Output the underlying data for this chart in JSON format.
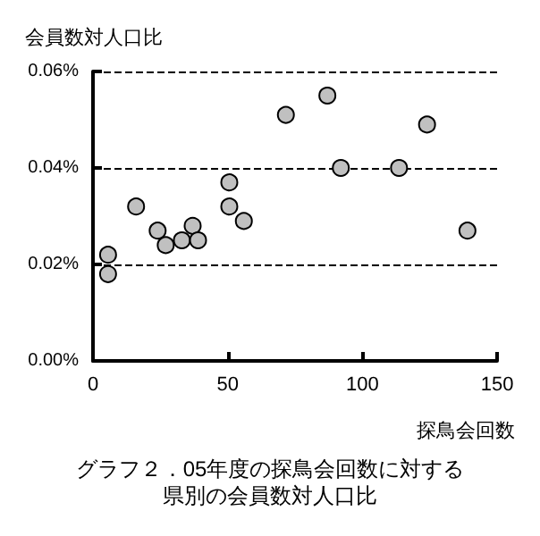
{
  "chart_data": {
    "type": "scatter",
    "title": "グラフ２．05年度の探鳥会回数に対する県別の会員数対人口比",
    "xlabel": "探鳥会回数",
    "ylabel": "会員数対人口比",
    "x": [
      5.6,
      5.6,
      16,
      24,
      27,
      33,
      37,
      39,
      50.6,
      50.6,
      56,
      71.6,
      87,
      92,
      113.6,
      124,
      139
    ],
    "series": [
      {
        "color": "#c0c0c0",
        "values": [
          0.022,
          0.018,
          0.032,
          0.027,
          0.024,
          0.025,
          0.028,
          0.025,
          0.037,
          0.032,
          0.029,
          0.051,
          0.055,
          0.04,
          0.04,
          0.049,
          0.027
        ]
      }
    ],
    "xlim": [
      0,
      150
    ],
    "xticks": [
      0,
      50,
      100,
      150
    ],
    "ylim": [
      0,
      0.06
    ],
    "yticks": [
      {
        "value": 0,
        "label": "0.00%"
      },
      {
        "value": 0.02,
        "label": "0.02%"
      },
      {
        "value": 0.04,
        "label": "0.04%"
      },
      {
        "value": 0.06,
        "label": "0.06%"
      }
    ],
    "grid": "y",
    "marker": "circle"
  }
}
